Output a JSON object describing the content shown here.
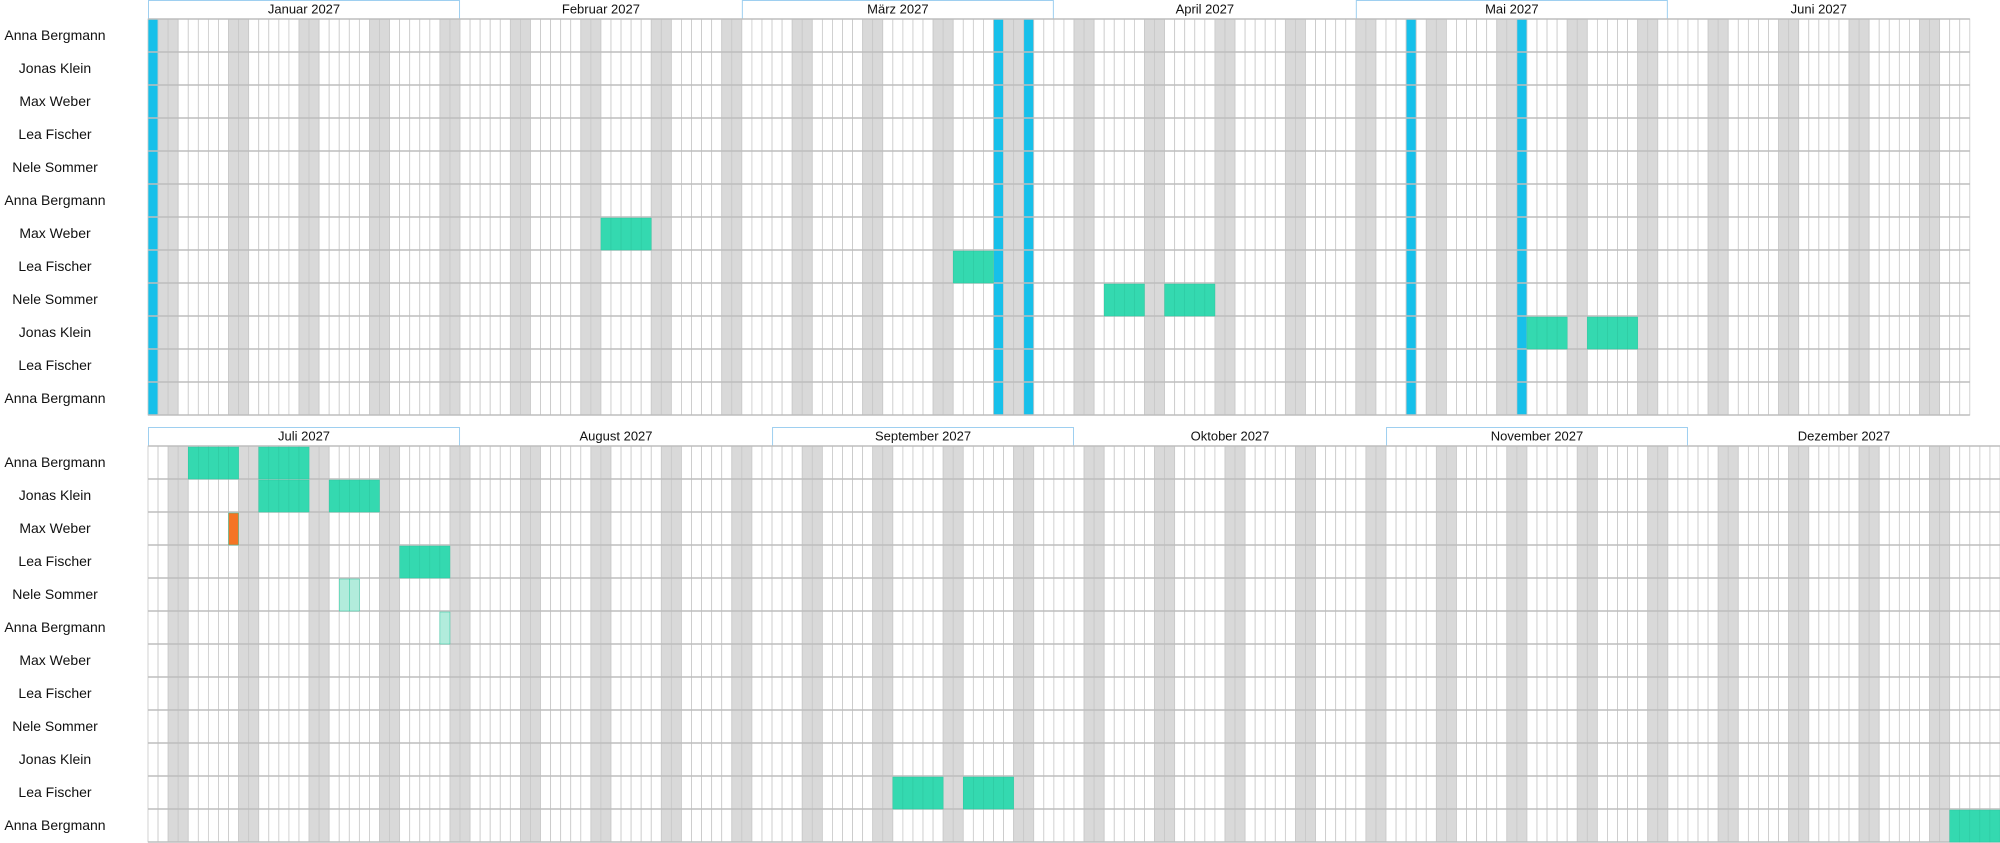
{
  "panels": [
    {
      "months": [
        "Januar 2027",
        "Februar 2027",
        "März 2027",
        "April 2027",
        "Mai 2027",
        "Juni 2027"
      ],
      "rows": [
        "Anna Bergmann",
        "Jonas Klein",
        "Max Weber",
        "Lea Fischer",
        "Nele Sommer",
        "Anna Bergmann",
        "Max Weber",
        "Lea Fischer",
        "Nele Sommer",
        "Jonas Klein",
        "Lea Fischer",
        "Anna Bergmann"
      ]
    },
    {
      "months": [
        "Juli 2027",
        "August 2027",
        "September 2027",
        "Oktober 2027",
        "November 2027",
        "Dezember 2027"
      ],
      "rows": [
        "Anna Bergmann",
        "Jonas Klein",
        "Max Weber",
        "Lea Fischer",
        "Nele Sommer",
        "Anna Bergmann",
        "Max Weber",
        "Lea Fischer",
        "Nele Sommer",
        "Jonas Klein",
        "Lea Fischer",
        "Anna Bergmann"
      ]
    }
  ]
}
